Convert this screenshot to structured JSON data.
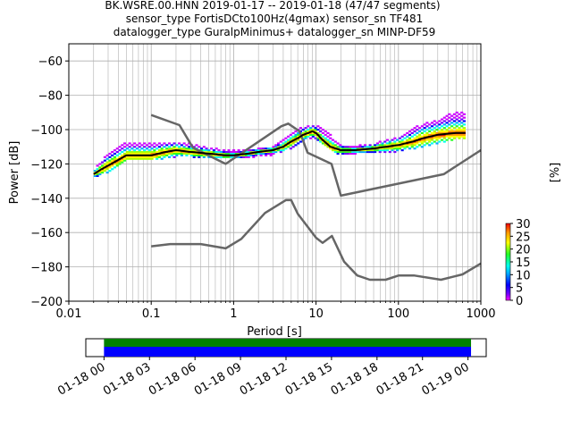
{
  "title_lines": [
    "BK.WSRE.00.HNN   2019-01-17 -- 2019-01-18  (47/47 segments)",
    "sensor_type FortisDCto100Hz(4gmax) sensor_sn TF481",
    "datalogger_type GuralpMinimus+ datalogger_sn MINP-DF59"
  ],
  "chart_data": [
    {
      "type": "heatmap",
      "title": "BK.WSRE.00.HNN   2019-01-17 -- 2019-01-18  (47/47 segments)",
      "xlabel": "Period [s]",
      "ylabel": "Power [dB]",
      "x_scale": "log",
      "xlim": [
        0.01,
        1000
      ],
      "ylim": [
        -200,
        -50
      ],
      "grid": true,
      "x_ticks": [
        0.01,
        0.1,
        1,
        10,
        100,
        1000
      ],
      "x_tick_labels": [
        "0.01",
        "0.1",
        "1",
        "10",
        "100",
        "1000"
      ],
      "y_ticks": [
        -200,
        -180,
        -160,
        -140,
        -120,
        -100,
        -80,
        -60
      ],
      "y_tick_labels": [
        "−200",
        "−180",
        "−160",
        "−140",
        "−120",
        "−100",
        "−80",
        "−60"
      ],
      "colorbar": {
        "label": "[%]",
        "range": [
          0,
          30
        ],
        "ticks": [
          0,
          5,
          10,
          15,
          20,
          25,
          30
        ],
        "tick_labels": [
          "0",
          "5",
          "10",
          "15",
          "20",
          "25",
          "30"
        ]
      },
      "psd_mean": {
        "period": [
          0.02,
          0.025,
          0.03,
          0.05,
          0.1,
          0.15,
          0.2,
          0.3,
          0.5,
          0.8,
          1.0,
          1.5,
          2.0,
          3.0,
          4.0,
          5.0,
          6.0,
          7.0,
          8.0,
          9.0,
          10.0,
          12.0,
          15.0,
          20.0,
          30.0,
          50.0,
          70.0,
          100.0,
          150.0,
          200.0,
          300.0,
          500.0,
          650.0
        ],
        "power": [
          -126,
          -123,
          -121,
          -115,
          -115,
          -113,
          -112,
          -113,
          -114,
          -115,
          -115,
          -114,
          -113,
          -112,
          -110,
          -107,
          -105,
          -103,
          -102,
          -101,
          -102,
          -106,
          -110,
          -112,
          -112,
          -111,
          -110,
          -109,
          -107,
          -105,
          -103,
          -102,
          -102
        ]
      },
      "psd_density": {
        "period": [
          0.02,
          0.03,
          0.05,
          0.1,
          0.2,
          0.3,
          0.5,
          1,
          2,
          3,
          5,
          7,
          10,
          15,
          20,
          30,
          50,
          100,
          200,
          300,
          500,
          650
        ],
        "lower": [
          -127,
          -124,
          -117,
          -117,
          -115,
          -115,
          -116,
          -116,
          -115,
          -114,
          -110,
          -105,
          -104,
          -112,
          -114,
          -113,
          -113,
          -112,
          -109,
          -107,
          -105,
          -105
        ],
        "upper": [
          -124,
          -114,
          -108,
          -108,
          -108,
          -109,
          -111,
          -113,
          -112,
          -111,
          -103,
          -99,
          -98,
          -104,
          -110,
          -110,
          -109,
          -105,
          -97,
          -95,
          -90,
          -90
        ]
      },
      "noise_model_high": {
        "period": [
          0.1,
          0.22,
          0.32,
          0.8,
          3.8,
          4.6,
          6.3,
          7.9,
          15.4,
          20,
          354.8,
          1000
        ],
        "power": [
          -91.5,
          -97.4,
          -110.5,
          -120,
          -98,
          -96.5,
          -101,
          -113.5,
          -120,
          -138.5,
          -126,
          -112
        ]
      },
      "noise_model_low": {
        "period": [
          0.1,
          0.17,
          0.4,
          0.8,
          1.24,
          2.4,
          4.3,
          5,
          6,
          10,
          12,
          15.6,
          21.9,
          31.6,
          45,
          70,
          101,
          154,
          328,
          600,
          1000
        ],
        "power": [
          -168,
          -166.7,
          -166.7,
          -169.2,
          -163.7,
          -148.6,
          -141.1,
          -141.1,
          -149,
          -163,
          -166,
          -162,
          -177,
          -185,
          -187.5,
          -187.5,
          -185,
          -185,
          -187.5,
          -184.4,
          -178
        ]
      }
    },
    {
      "type": "bar",
      "description_tag": "data-availability",
      "x_tick_labels": [
        "01-18 00",
        "01-18 03",
        "01-18 06",
        "01-18 09",
        "01-18 12",
        "01-18 15",
        "01-18 18",
        "01-18 21",
        "01-19 00"
      ],
      "x_range_hours": [
        -1.2,
        25.2
      ],
      "coverage_start_hour": 0,
      "coverage_end_hour": 24.2,
      "colors": {
        "top": "#008000",
        "bottom": "#0000ff"
      }
    }
  ],
  "colors": {
    "noise_model": "#666666",
    "mean_line": "#000000",
    "grid": "#b0b0b0",
    "availability_top": "#008000",
    "availability_bottom": "#0000ff"
  }
}
